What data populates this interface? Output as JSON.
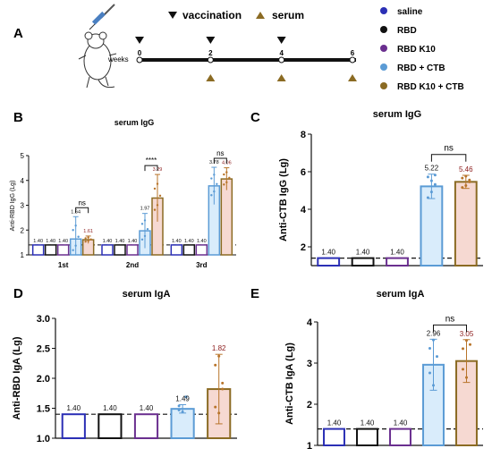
{
  "panel_a": {
    "label": "A",
    "legend_vaccination": "vaccination",
    "legend_serum": "serum",
    "timeline_label": "weeks",
    "weeks": [
      "0",
      "2",
      "4",
      "6"
    ],
    "vaccination_weeks": [
      "0",
      "2",
      "4"
    ],
    "serum_weeks": [
      "2",
      "4",
      "6"
    ]
  },
  "legend": {
    "items": [
      {
        "label": "saline",
        "color": "#2b2fb5"
      },
      {
        "label": "RBD",
        "color": "#111111"
      },
      {
        "label": "RBD K10",
        "color": "#6a2f8f"
      },
      {
        "label": "RBD + CTB",
        "color": "#5b9bd5"
      },
      {
        "label": "RBD K10 + CTB",
        "color": "#8b6b23"
      }
    ]
  },
  "significance": {
    "ns": "ns",
    "stars": "****"
  },
  "chart_data": [
    {
      "id": "B",
      "panel": "B",
      "type": "bar",
      "title": "serum IgG",
      "ylabel": "Anti-RBD IgG (Lg)",
      "ylim": [
        1,
        5
      ],
      "yticks": [
        "1",
        "2",
        "3",
        "4",
        "5"
      ],
      "categories": [
        "1st",
        "2nd",
        "3rd"
      ],
      "baseline": 1.4,
      "series": [
        {
          "name": "saline",
          "values": [
            1.4,
            1.4,
            1.4
          ],
          "labels": [
            "1.40",
            "1.40",
            "1.40"
          ]
        },
        {
          "name": "RBD",
          "values": [
            1.4,
            1.4,
            1.4
          ],
          "labels": [
            "1.40",
            "1.40",
            "1.40"
          ]
        },
        {
          "name": "RBD K10",
          "values": [
            1.4,
            1.4,
            1.4
          ],
          "labels": [
            "1.40",
            "1.40",
            "1.40"
          ]
        },
        {
          "name": "RBD + CTB",
          "values": [
            1.64,
            1.97,
            3.78
          ],
          "labels": [
            "1.64",
            "1.97",
            "3.78"
          ]
        },
        {
          "name": "RBD K10 + CTB",
          "values": [
            1.61,
            3.29,
            4.06
          ],
          "labels": [
            "1.61",
            "3.29",
            "4.06"
          ]
        }
      ]
    },
    {
      "id": "C",
      "panel": "C",
      "type": "bar",
      "title": "serum IgG",
      "ylabel": "Anti-CTB IgG (Lg)",
      "ylim": [
        1,
        8
      ],
      "yticks": [
        "2",
        "4",
        "6",
        "8"
      ],
      "categories": [
        "saline",
        "RBD",
        "RBD K10",
        "RBD + CTB",
        "RBD K10 + CTB"
      ],
      "values": [
        1.4,
        1.4,
        1.4,
        5.22,
        5.46
      ],
      "labels": [
        "1.40",
        "1.40",
        "1.40",
        "5.22",
        "5.46"
      ]
    },
    {
      "id": "D",
      "panel": "D",
      "type": "bar",
      "title": "serum IgA",
      "ylabel": "Anti-RBD IgA (Lg)",
      "ylim": [
        1,
        3
      ],
      "yticks": [
        "1.0",
        "1.5",
        "2.0",
        "2.5",
        "3.0"
      ],
      "categories": [
        "saline",
        "RBD",
        "RBD K10",
        "RBD + CTB",
        "RBD K10 + CTB"
      ],
      "values": [
        1.4,
        1.4,
        1.4,
        1.49,
        1.82
      ],
      "labels": [
        "1.40",
        "1.40",
        "1.40",
        "1.49",
        "1.82"
      ]
    },
    {
      "id": "E",
      "panel": "E",
      "type": "bar",
      "title": "serum IgA",
      "ylabel": "Anti-CTB IgA (Lg)",
      "ylim": [
        1,
        4
      ],
      "yticks": [
        "1",
        "2",
        "3",
        "4"
      ],
      "categories": [
        "saline",
        "RBD",
        "RBD K10",
        "RBD + CTB",
        "RBD K10 + CTB"
      ],
      "values": [
        1.4,
        1.4,
        1.4,
        2.96,
        3.05
      ],
      "labels": [
        "1.40",
        "1.40",
        "1.40",
        "2.96",
        "3.05"
      ]
    }
  ]
}
